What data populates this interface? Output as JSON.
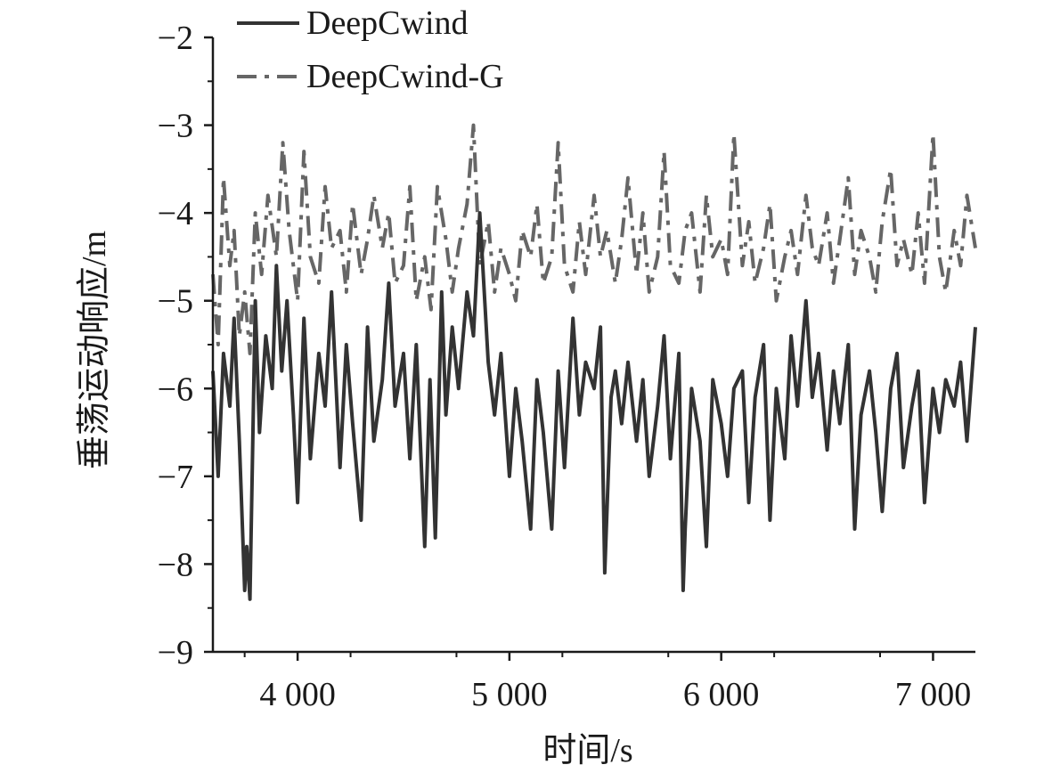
{
  "chart_data": {
    "type": "line",
    "title": "",
    "xlabel": "时间/s",
    "ylabel": "垂荡运动响应/m",
    "xlim": [
      3600,
      7200
    ],
    "ylim": [
      -9,
      -2
    ],
    "x_ticks": [
      4000,
      5000,
      6000,
      7000
    ],
    "x_tick_labels": [
      "4 000",
      "5 000",
      "6 000",
      "7 000"
    ],
    "y_ticks": [
      -9,
      -8,
      -7,
      -6,
      -5,
      -4,
      -3,
      -2
    ],
    "y_tick_labels": [
      "−9",
      "−8",
      "−7",
      "−6",
      "−5",
      "−4",
      "−3",
      "−2"
    ],
    "grid": false,
    "legend_position": "top-left",
    "series": [
      {
        "name": "DeepCwind",
        "color": "#333333",
        "style": "solid",
        "x": [
          3600,
          3625,
          3650,
          3680,
          3700,
          3725,
          3750,
          3760,
          3775,
          3800,
          3820,
          3850,
          3880,
          3900,
          3925,
          3950,
          3980,
          4000,
          4030,
          4060,
          4100,
          4130,
          4160,
          4200,
          4230,
          4260,
          4300,
          4330,
          4360,
          4400,
          4430,
          4460,
          4500,
          4530,
          4560,
          4600,
          4625,
          4650,
          4680,
          4700,
          4730,
          4760,
          4800,
          4830,
          4860,
          4900,
          4930,
          4960,
          5000,
          5030,
          5060,
          5100,
          5130,
          5160,
          5200,
          5230,
          5260,
          5300,
          5330,
          5360,
          5400,
          5430,
          5450,
          5480,
          5500,
          5530,
          5560,
          5600,
          5630,
          5660,
          5700,
          5730,
          5760,
          5800,
          5820,
          5830,
          5860,
          5900,
          5930,
          5960,
          6000,
          6030,
          6060,
          6100,
          6130,
          6160,
          6200,
          6230,
          6260,
          6300,
          6330,
          6360,
          6400,
          6430,
          6460,
          6500,
          6530,
          6560,
          6600,
          6630,
          6660,
          6700,
          6730,
          6760,
          6800,
          6830,
          6860,
          6900,
          6930,
          6960,
          7000,
          7030,
          7060,
          7100,
          7130,
          7160,
          7200
        ],
        "y": [
          -5.8,
          -7.0,
          -5.6,
          -6.2,
          -5.2,
          -6.6,
          -8.3,
          -7.8,
          -8.4,
          -5.0,
          -6.5,
          -5.4,
          -6.0,
          -4.6,
          -5.8,
          -5.0,
          -6.3,
          -7.3,
          -5.2,
          -6.8,
          -5.6,
          -6.2,
          -4.9,
          -6.9,
          -5.5,
          -6.4,
          -7.5,
          -5.3,
          -6.6,
          -5.9,
          -4.8,
          -6.2,
          -5.6,
          -6.8,
          -5.5,
          -7.8,
          -5.9,
          -7.7,
          -4.9,
          -6.3,
          -5.3,
          -6.0,
          -4.9,
          -5.4,
          -4.0,
          -5.7,
          -6.3,
          -5.6,
          -7.0,
          -6.0,
          -6.6,
          -7.6,
          -5.9,
          -6.5,
          -7.6,
          -5.8,
          -6.9,
          -5.2,
          -6.3,
          -5.7,
          -6.0,
          -5.3,
          -8.1,
          -6.1,
          -5.8,
          -6.4,
          -5.7,
          -6.6,
          -5.9,
          -7.0,
          -6.2,
          -5.4,
          -6.8,
          -5.6,
          -8.3,
          -7.6,
          -6.0,
          -6.6,
          -7.8,
          -5.9,
          -6.4,
          -7.0,
          -6.0,
          -5.8,
          -7.3,
          -6.1,
          -5.5,
          -7.5,
          -6.0,
          -6.8,
          -5.4,
          -6.2,
          -5.0,
          -6.1,
          -5.6,
          -6.7,
          -5.8,
          -6.4,
          -5.5,
          -7.6,
          -6.3,
          -5.8,
          -6.5,
          -7.4,
          -6.0,
          -5.6,
          -6.9,
          -6.2,
          -5.8,
          -7.3,
          -6.0,
          -6.5,
          -5.9,
          -6.2,
          -5.7,
          -6.6,
          -5.3
        ]
      },
      {
        "name": "DeepCwind-G",
        "color": "#666666",
        "style": "dash-dot",
        "x": [
          3600,
          3625,
          3650,
          3680,
          3700,
          3725,
          3750,
          3775,
          3800,
          3830,
          3860,
          3900,
          3930,
          3960,
          4000,
          4030,
          4060,
          4100,
          4130,
          4160,
          4200,
          4230,
          4260,
          4300,
          4330,
          4360,
          4400,
          4430,
          4460,
          4500,
          4530,
          4560,
          4600,
          4630,
          4660,
          4700,
          4730,
          4760,
          4800,
          4830,
          4860,
          4900,
          4930,
          4960,
          5000,
          5030,
          5060,
          5100,
          5130,
          5160,
          5200,
          5230,
          5260,
          5300,
          5330,
          5360,
          5400,
          5430,
          5460,
          5500,
          5530,
          5560,
          5600,
          5630,
          5660,
          5700,
          5730,
          5760,
          5800,
          5830,
          5860,
          5900,
          5930,
          5960,
          6000,
          6030,
          6060,
          6100,
          6130,
          6160,
          6200,
          6230,
          6260,
          6300,
          6330,
          6360,
          6400,
          6430,
          6460,
          6500,
          6530,
          6560,
          6600,
          6630,
          6660,
          6700,
          6730,
          6760,
          6800,
          6830,
          6860,
          6900,
          6930,
          6960,
          7000,
          7030,
          7060,
          7100,
          7130,
          7160,
          7200
        ],
        "y": [
          -4.7,
          -5.5,
          -3.6,
          -4.6,
          -4.2,
          -5.4,
          -4.9,
          -5.6,
          -4.0,
          -4.7,
          -3.8,
          -4.5,
          -3.2,
          -4.2,
          -5.0,
          -3.3,
          -4.5,
          -4.8,
          -3.7,
          -4.4,
          -4.2,
          -4.9,
          -3.9,
          -4.7,
          -4.3,
          -3.8,
          -4.4,
          -4.0,
          -4.8,
          -4.6,
          -3.7,
          -5.0,
          -4.5,
          -5.1,
          -3.7,
          -4.3,
          -4.9,
          -4.4,
          -3.9,
          -3.0,
          -4.6,
          -4.1,
          -4.9,
          -4.4,
          -4.7,
          -5.0,
          -4.2,
          -4.5,
          -3.9,
          -4.8,
          -4.5,
          -3.2,
          -4.6,
          -4.9,
          -4.1,
          -4.7,
          -3.8,
          -4.5,
          -4.2,
          -4.8,
          -4.3,
          -3.6,
          -4.7,
          -4.0,
          -4.9,
          -4.5,
          -3.3,
          -4.6,
          -4.8,
          -4.2,
          -4.0,
          -4.9,
          -3.8,
          -4.5,
          -4.3,
          -4.7,
          -3.1,
          -4.6,
          -4.1,
          -4.8,
          -4.4,
          -3.9,
          -5.0,
          -4.5,
          -4.2,
          -4.7,
          -3.8,
          -4.4,
          -4.6,
          -4.0,
          -4.8,
          -4.3,
          -3.6,
          -4.7,
          -4.2,
          -4.5,
          -4.9,
          -4.1,
          -3.5,
          -4.6,
          -4.3,
          -4.7,
          -4.0,
          -4.8,
          -3.1,
          -4.5,
          -4.9,
          -4.2,
          -4.6,
          -3.8,
          -4.4
        ]
      }
    ]
  }
}
